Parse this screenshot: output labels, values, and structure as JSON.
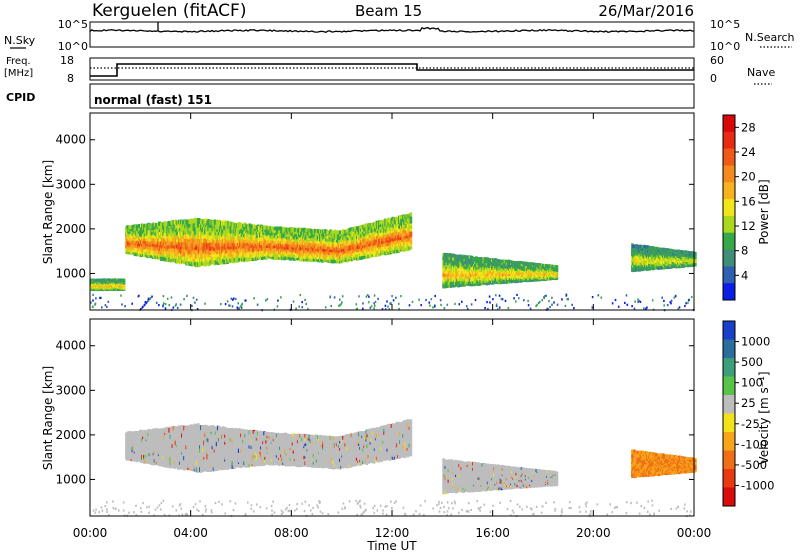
{
  "header": {
    "station": "Kerguelen (fitACF)",
    "beam": "Beam 15",
    "date": "26/Mar/2016"
  },
  "strip": {
    "nsky_label": "N.Sky",
    "nsky_ticks": [
      "10^5",
      "10^0"
    ],
    "nsearch_label": "N.Search",
    "nsearch_ticks": [
      "10^5",
      "10^0"
    ],
    "freq_label": "Freq.",
    "freq_unit": "[MHz]",
    "freq_ticks": [
      "18",
      "8"
    ],
    "nave_label": "Nave",
    "nave_ticks": [
      "60",
      "0"
    ],
    "cpid_label": "CPID",
    "cpid_value": "normal (fast) 151"
  },
  "colors": {
    "power": [
      "#0a1ee6",
      "#2f5fb0",
      "#3f8f78",
      "#36a84a",
      "#a9d81e",
      "#f2e61a",
      "#f7b21e",
      "#f48a1e",
      "#ef5a18",
      "#e82a12",
      "#d80808"
    ],
    "velocity": [
      "#1a3fc8",
      "#2b6e9c",
      "#3c9f7c",
      "#58c447",
      "#bdbdbd",
      "#f2e21a",
      "#f7a61a",
      "#f06e18",
      "#e83a12",
      "#d80c0c"
    ]
  },
  "chart_data": [
    {
      "type": "heatmap",
      "name": "power",
      "xlabel": "",
      "ylabel": "Slant Range [km]",
      "xlim": [
        "00:00",
        "24:00"
      ],
      "ylim": [
        180,
        4600
      ],
      "yticks": [
        "1000",
        "2000",
        "3000",
        "4000"
      ],
      "colorbar": {
        "label": "Power [dB]",
        "ticks": [
          "4",
          "8",
          "12",
          "16",
          "20",
          "24",
          "28"
        ],
        "range": [
          0,
          30
        ]
      },
      "regions": [
        {
          "t": [
            1.4,
            12.7
          ],
          "range_lo": [
            1500,
            1250,
            1400,
            1300,
            1600
          ],
          "range_hi": [
            2100,
            2300,
            2100,
            2000,
            2400
          ],
          "level": 24
        },
        {
          "t": [
            0.0,
            1.3
          ],
          "range_lo": [
            650,
            650
          ],
          "range_hi": [
            900,
            900
          ],
          "level": 18
        },
        {
          "t": [
            14.0,
            18.5
          ],
          "range_lo": [
            750,
            900
          ],
          "range_hi": [
            1500,
            1200
          ],
          "level": 18
        },
        {
          "t": [
            21.5,
            24.0
          ],
          "range_lo": [
            1100,
            1200
          ],
          "range_hi": [
            1700,
            1500
          ],
          "level": 14
        }
      ]
    },
    {
      "type": "heatmap",
      "name": "velocity",
      "xlabel": "Time UT",
      "ylabel": "Slant Range [km]",
      "xlim": [
        "00:00",
        "24:00"
      ],
      "xticks": [
        "00:00",
        "04:00",
        "08:00",
        "12:00",
        "16:00",
        "20:00",
        "00:00"
      ],
      "ylim": [
        180,
        4600
      ],
      "yticks": [
        "1000",
        "2000",
        "3000",
        "4000"
      ],
      "colorbar": {
        "label": "Velocity [m s⁻¹]",
        "ticks": [
          "1000",
          "500",
          "100",
          "25",
          "-25",
          "-100",
          "-500",
          "-1000"
        ]
      },
      "regions": [
        {
          "t": [
            1.4,
            12.7
          ],
          "range_lo": [
            1500,
            1250,
            1400,
            1300,
            1600
          ],
          "range_hi": [
            2100,
            2300,
            2100,
            2000,
            2400
          ],
          "level": 0
        },
        {
          "t": [
            14.0,
            18.5
          ],
          "range_lo": [
            750,
            900
          ],
          "range_hi": [
            1500,
            1200
          ],
          "level": 0
        },
        {
          "t": [
            21.5,
            24.0
          ],
          "range_lo": [
            1100,
            1200
          ],
          "range_hi": [
            1700,
            1500
          ],
          "level": -300
        }
      ]
    }
  ]
}
